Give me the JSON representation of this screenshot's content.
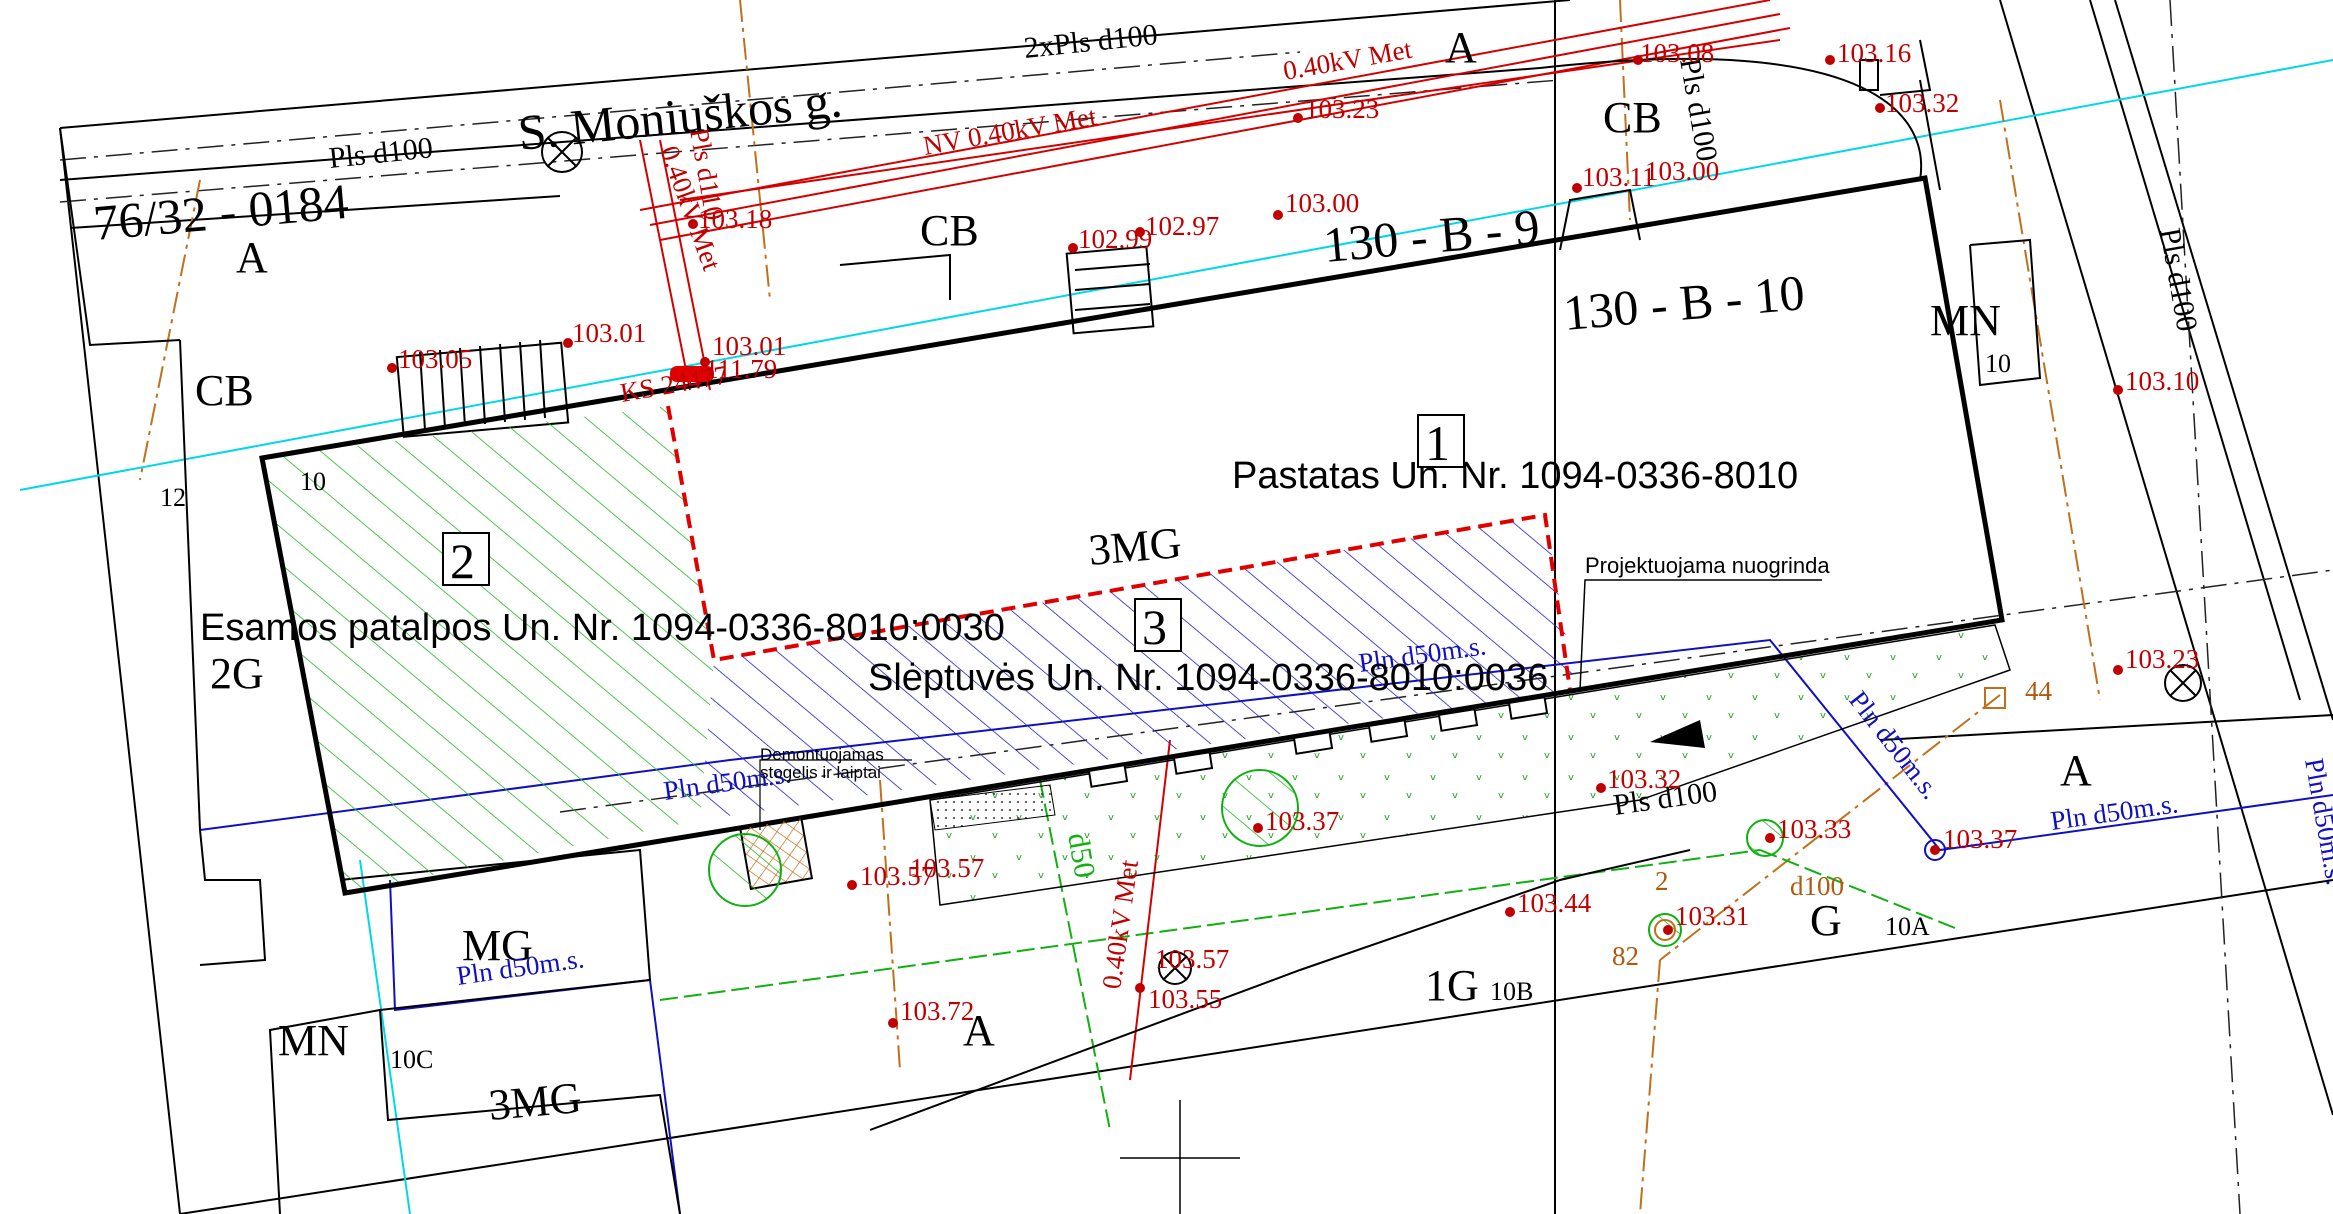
{
  "street": {
    "name": "S. Moniuškos g."
  },
  "plot_number": "76/32 - 0184",
  "blocks": {
    "b9": "130 - B - 9",
    "b10": "130 - B - 10"
  },
  "zones": {
    "a_top": "A",
    "a_top_left": "A",
    "a_right": "A",
    "a_bottom": "A",
    "cb_top_right": "CB",
    "cb_mid": "CB",
    "cb_left": "CB",
    "mn_right": "MN",
    "mn_bottom_left": "MN",
    "g2_left": "2G",
    "mg_center": "3MG",
    "mg_bottom_left": "MG",
    "mg3_bottom": "3MG",
    "g1_bottom": "1G",
    "g_right": "G"
  },
  "numbers": {
    "n10_right": "10",
    "n12_left": "12",
    "n10_corner": "10",
    "n10c": "10C",
    "n10b": "10B",
    "n10a": "10A",
    "n44": "44",
    "n82": "82"
  },
  "units": {
    "unit1": {
      "number": "1",
      "label": "Pastatas Un. Nr. 1094-0336-8010"
    },
    "unit2": {
      "number": "2",
      "label": "Esamos patalpos Un. Nr. 1094-0336-8010:0030"
    },
    "unit3": {
      "number": "3",
      "label": "Slėptuvės Un. Nr. 1094-0336-8010:0036"
    }
  },
  "annotations": {
    "ramp": "Projektuojama nuogrinda",
    "demolish_line1": "Demontuojamas",
    "demolish_line2": "stogelis ir laiptai"
  },
  "utilities": {
    "pls_2x": "2xPls d100",
    "pls_left": "Pls d100",
    "pls_top_mid": "Pls d100",
    "pls_right": "Pls d100",
    "pls_bottom": "Pls d100",
    "kv_top": "0.40kV Met",
    "kv_mid": "NV 0.40kV Met",
    "kv_vertical": "0.40kV Met",
    "kv_bottom": "0.40kV Met",
    "pls_vertical_red": "Pls d110",
    "pln_top": "Pln d50m.s.",
    "pln_left": "Pln d50m.s.",
    "pln_bottom_left": "Pln d50m.s.",
    "pln_right": "Pln d50m.s.",
    "pln_diag": "Pln d50m.s.",
    "pln_edge": "Pln d50m.s.",
    "d50": "d50",
    "d100": "d100",
    "ks": "KS 24477",
    "dim_2": "2"
  },
  "elevations": {
    "e1": "103.08",
    "e2": "103.16",
    "e3": "103.32",
    "e4": "103.23",
    "e5": "103.11",
    "e6": "103.00",
    "e7": "103.00",
    "e8": "102.97",
    "e9": "102.99",
    "e10": "103.18",
    "e11": "103.01",
    "e12": "103.05",
    "e13": "103.01",
    "e14": "111.79",
    "e15": "103.10",
    "e16": "103.23",
    "e17": "103.32",
    "e18": "103.37",
    "e19": "103.33",
    "e20": "103.37",
    "e21": "103.31",
    "e22": "103.44",
    "e23": "103.57",
    "e24": "103.57",
    "e25": "103.72",
    "e26": "103.55",
    "e27": "103.57"
  },
  "colors": {
    "boundary": "#000000",
    "cyan": "#00d8e8",
    "red": "#d40000",
    "blue": "#1010c0",
    "green": "#10b010",
    "brown": "#c0701a"
  }
}
